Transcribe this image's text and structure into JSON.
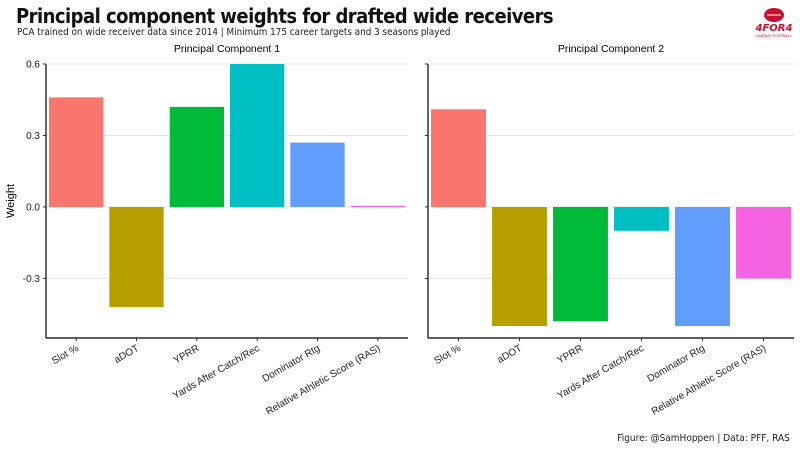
{
  "header": {
    "title": "Principal component weights for drafted wide receivers",
    "subtitle": "PCA trained on wide receiver data since 2014 | Minimum 175 career targets and 3 seasons played"
  },
  "caption": "Figure: @SamHoppen | Data: PFF, RAS",
  "logo": {
    "name": "4for4-logo",
    "text": "4FOR4",
    "subtext": "FANTASY FOOTBALL",
    "color": "#c8102e"
  },
  "colors": [
    "#f8766d",
    "#b79f00",
    "#00ba38",
    "#00bfc4",
    "#619cff",
    "#f564e3"
  ],
  "chart_data": {
    "type": "bar",
    "ylabel": "Weight",
    "ylim": [
      -0.55,
      0.6
    ],
    "yticks": [
      -0.3,
      0,
      0.3,
      0.6
    ],
    "ytick_labels": [
      "-0.3",
      "0.0",
      "0.3",
      "0.6"
    ],
    "grid": true,
    "legend": "none",
    "categories": [
      "Slot %",
      "aDOT",
      "YPRR",
      "Yards After Catch/Rec",
      "Dominator Rtg",
      "Relative Athletic Score (RAS)"
    ],
    "panels": [
      {
        "name": "Principal Component 1",
        "values": [
          0.46,
          -0.42,
          0.42,
          0.6,
          0.27,
          0.005
        ]
      },
      {
        "name": "Principal Component 2",
        "values": [
          0.41,
          -0.5,
          -0.48,
          -0.1,
          -0.5,
          -0.3
        ]
      }
    ]
  }
}
